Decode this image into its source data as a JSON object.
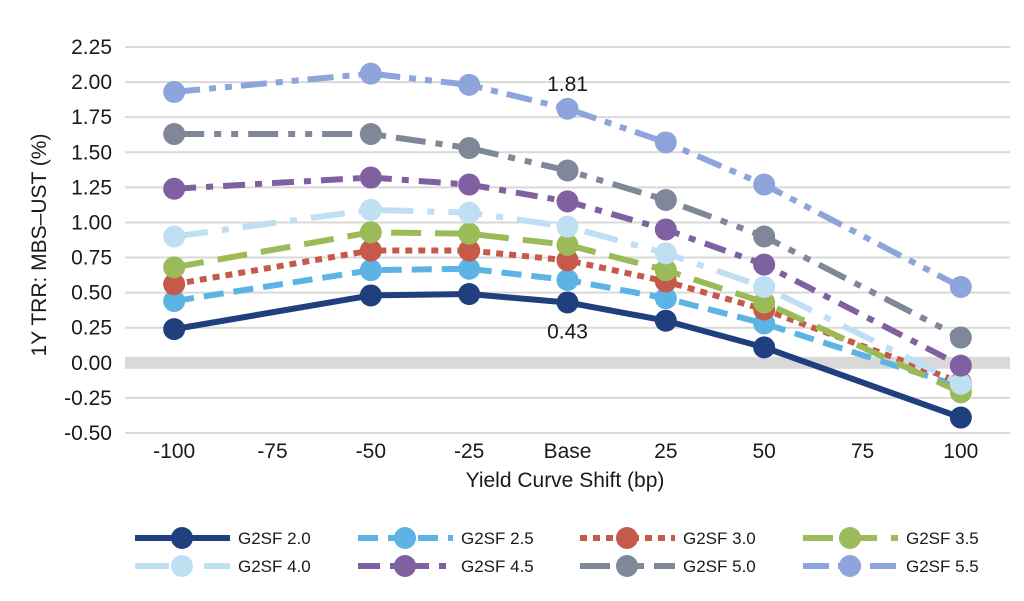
{
  "chart_data": {
    "type": "line",
    "title": "",
    "xlabel": "Yield Curve Shift (bp)",
    "ylabel": "1Y TRR: MBS–UST (%)",
    "categories": [
      "-100",
      "-75",
      "-50",
      "-25",
      "Base",
      "25",
      "50",
      "75",
      "100"
    ],
    "ylim": [
      -0.5,
      2.25
    ],
    "yticks": [
      "2.25",
      "2.00",
      "1.75",
      "1.50",
      "1.25",
      "1.00",
      "0.75",
      "0.50",
      "0.25",
      "0.00",
      "-0.25",
      "-0.50"
    ],
    "ytick_values": [
      2.25,
      2.0,
      1.75,
      1.5,
      1.25,
      1.0,
      0.75,
      0.5,
      0.25,
      0.0,
      -0.25,
      -0.5
    ],
    "grid": true,
    "zero_band": true,
    "legend_position": "bottom",
    "series": [
      {
        "name": "G2SF 2.0",
        "color": "#1f3f7f",
        "dash": "solid",
        "values": [
          0.24,
          null,
          0.48,
          0.49,
          0.43,
          0.3,
          0.11,
          null,
          -0.39
        ]
      },
      {
        "name": "G2SF 2.5",
        "color": "#5db3e4",
        "dash": "dash",
        "values": [
          0.44,
          null,
          0.66,
          0.67,
          0.59,
          0.46,
          0.28,
          null,
          -0.17
        ]
      },
      {
        "name": "G2SF 3.0",
        "color": "#c55a4a",
        "dash": "dot",
        "values": [
          0.56,
          null,
          0.8,
          0.8,
          0.73,
          0.58,
          0.38,
          null,
          -0.14
        ]
      },
      {
        "name": "G2SF 3.5",
        "color": "#9bbb59",
        "dash": "longdash",
        "values": [
          0.68,
          null,
          0.93,
          0.92,
          0.84,
          0.66,
          0.43,
          null,
          -0.21
        ]
      },
      {
        "name": "G2SF 4.0",
        "color": "#bfdff3",
        "dash": "longdashdot",
        "values": [
          0.9,
          null,
          1.09,
          1.07,
          0.97,
          0.78,
          0.54,
          null,
          -0.15
        ]
      },
      {
        "name": "G2SF 4.5",
        "color": "#7f60a0",
        "dash": "dashdot",
        "values": [
          1.24,
          null,
          1.32,
          1.27,
          1.15,
          0.95,
          0.7,
          null,
          -0.02
        ]
      },
      {
        "name": "G2SF 5.0",
        "color": "#7f8799",
        "dash": "longdashdotdot",
        "values": [
          1.63,
          null,
          1.63,
          1.53,
          1.37,
          1.16,
          0.9,
          null,
          0.18
        ]
      },
      {
        "name": "G2SF 5.5",
        "color": "#8ea5dc",
        "dash": "dashdotdot",
        "values": [
          1.93,
          null,
          2.06,
          1.98,
          1.81,
          1.57,
          1.27,
          null,
          0.54
        ]
      }
    ],
    "annotations": [
      {
        "text": "1.81",
        "series": "G2SF 5.5",
        "category": "Base",
        "placement": "above"
      },
      {
        "text": "0.43",
        "series": "G2SF 2.0",
        "category": "Base",
        "placement": "below"
      }
    ]
  }
}
